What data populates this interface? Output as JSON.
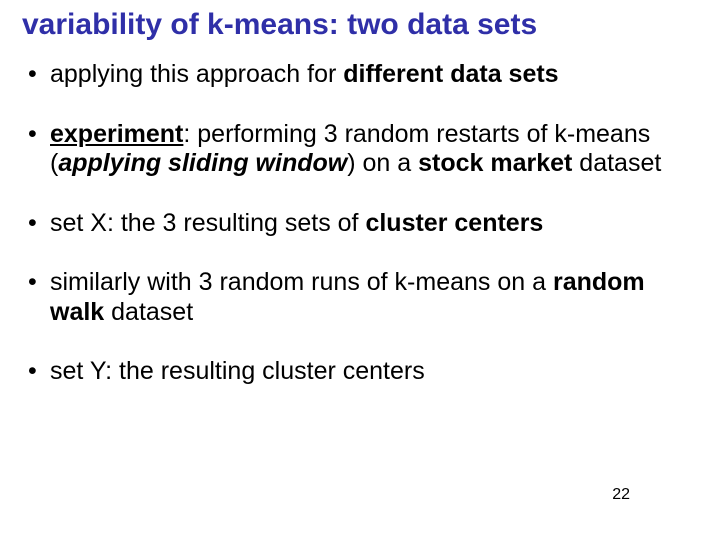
{
  "title": "variability of k-means: two data sets",
  "bullets": {
    "b0_pre": "applying this approach for ",
    "b0_bold": "different data sets",
    "b1_exp": "experiment",
    "b1_mid1": ": performing 3 random restarts of  k-means (",
    "b1_em": "applying sliding window",
    "b1_mid2": ") on a ",
    "b1_stock": "stock market",
    "b1_end": " dataset",
    "b2_pre": "set X: the 3 resulting sets of ",
    "b2_bold": "cluster centers",
    "b3_pre": "similarly with 3 random runs of k-means on a ",
    "b3_bold": "random walk",
    "b3_end": " dataset",
    "b4": "set Y: the resulting cluster centers"
  },
  "page_number": "22",
  "colors": {
    "title": "#2f2fa8",
    "text": "#000000",
    "background": "#ffffff"
  }
}
